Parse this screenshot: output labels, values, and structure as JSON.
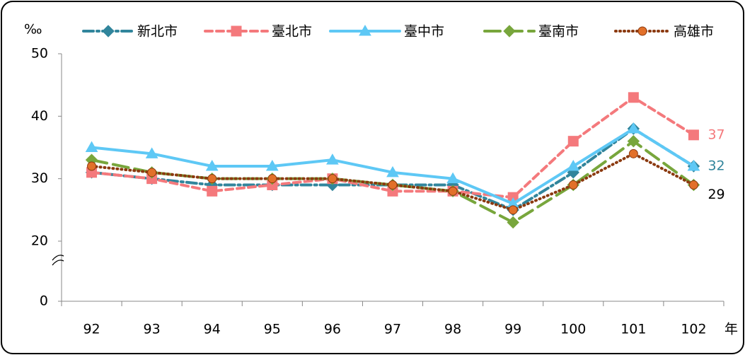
{
  "chart_data": {
    "type": "line",
    "y_unit": "‰",
    "x_unit": "年",
    "categories": [
      "92",
      "93",
      "94",
      "95",
      "96",
      "97",
      "98",
      "99",
      "100",
      "101",
      "102"
    ],
    "ylim": [
      0,
      50
    ],
    "yticks": [
      0,
      20,
      30,
      40,
      50
    ],
    "axis_break": [
      0,
      20
    ],
    "series": [
      {
        "name": "新北市",
        "color": "#31859c",
        "dash": "14,5,3,5",
        "marker": "diamond",
        "marker_fill": "#31859c",
        "label_color": "#31859c",
        "values": [
          31,
          30,
          29,
          29,
          29,
          29,
          29,
          25,
          31,
          38,
          32
        ]
      },
      {
        "name": "臺北市",
        "color": "#f4797c",
        "dash": "10,6",
        "marker": "square",
        "marker_fill": "#f4797c",
        "label_color": "#f4797c",
        "values": [
          31,
          30,
          28,
          29,
          30,
          28,
          28,
          27,
          36,
          43,
          37
        ]
      },
      {
        "name": "臺中市",
        "color": "#5ec8f5",
        "dash": "",
        "marker": "triangle",
        "marker_fill": "#5ec8f5",
        "values": [
          35,
          34,
          32,
          32,
          33,
          31,
          30,
          26,
          32,
          38,
          32
        ]
      },
      {
        "name": "臺南市",
        "color": "#78a63c",
        "dash": "22,9",
        "marker": "diamond",
        "marker_fill": "#78a63c",
        "values": [
          33,
          31,
          30,
          30,
          30,
          29,
          28,
          23,
          29,
          36,
          29
        ]
      },
      {
        "name": "高雄市",
        "color": "#8b3a10",
        "dash": "1,5",
        "marker": "circle",
        "marker_fill": "#e2702a",
        "label_color": "#000000",
        "values": [
          32,
          31,
          30,
          30,
          30,
          29,
          28,
          25,
          29,
          34,
          29
        ]
      }
    ]
  }
}
